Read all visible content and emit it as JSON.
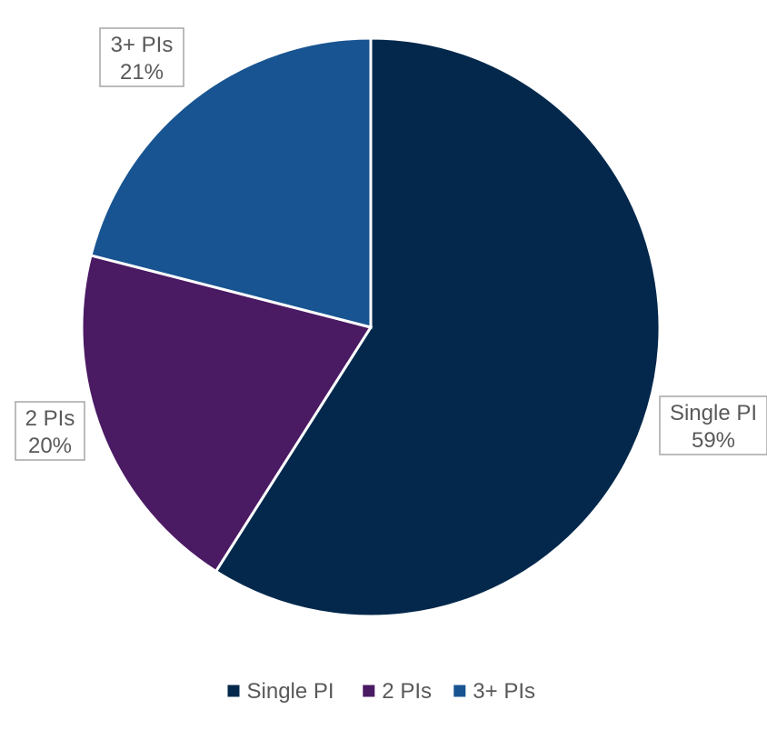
{
  "chart_data": {
    "type": "pie",
    "categories": [
      "Single PI",
      "2 PIs",
      "3+ PIs"
    ],
    "values": [
      59,
      20,
      21
    ],
    "value_suffix": "%",
    "colors": [
      "#03284c",
      "#4a1a63",
      "#185491"
    ],
    "start_angle_deg": 0,
    "direction": "clockwise",
    "data_labels": [
      {
        "name": "Single PI",
        "value": "59%"
      },
      {
        "name": "2 PIs",
        "value": "20%"
      },
      {
        "name": "3+ PIs",
        "value": "21%"
      }
    ],
    "legend": {
      "placement": "bottom",
      "entries": [
        "Single PI",
        "2 PIs",
        "3+ PIs"
      ]
    },
    "title": ""
  }
}
